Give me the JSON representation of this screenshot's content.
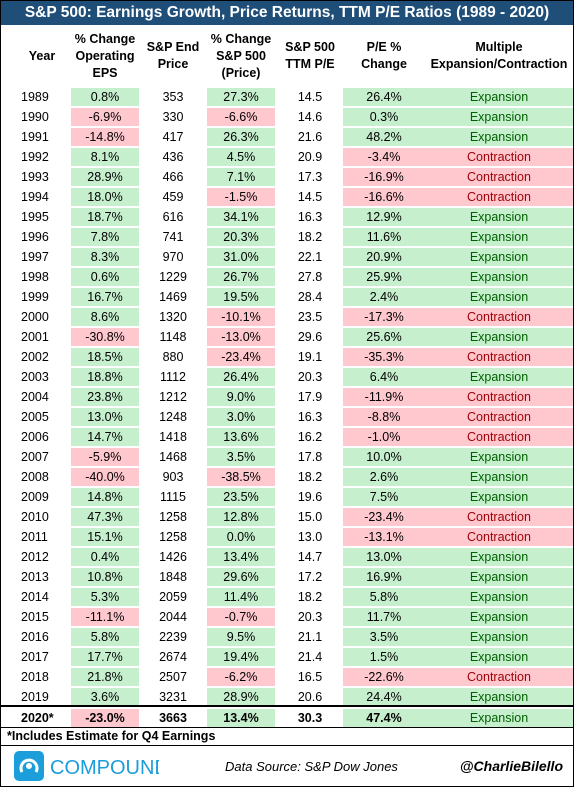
{
  "title": "S&P 500: Earnings Growth, Price Returns, TTM P/E Ratios (1989 - 2020)",
  "headers": [
    "Year",
    "% Change\nOperating\nEPS",
    "S&P End\nPrice",
    "% Change\nS&P 500\n(Price)",
    "S&P 500\nTTM P/E",
    "P/E %\nChange",
    "Multiple\nExpansion/Contraction"
  ],
  "rows": [
    [
      "1989",
      "0.8%",
      "353",
      "27.3%",
      "14.5",
      "26.4%",
      "Expansion"
    ],
    [
      "1990",
      "-6.9%",
      "330",
      "-6.6%",
      "14.6",
      "0.3%",
      "Expansion"
    ],
    [
      "1991",
      "-14.8%",
      "417",
      "26.3%",
      "21.6",
      "48.2%",
      "Expansion"
    ],
    [
      "1992",
      "8.1%",
      "436",
      "4.5%",
      "20.9",
      "-3.4%",
      "Contraction"
    ],
    [
      "1993",
      "28.9%",
      "466",
      "7.1%",
      "17.3",
      "-16.9%",
      "Contraction"
    ],
    [
      "1994",
      "18.0%",
      "459",
      "-1.5%",
      "14.5",
      "-16.6%",
      "Contraction"
    ],
    [
      "1995",
      "18.7%",
      "616",
      "34.1%",
      "16.3",
      "12.9%",
      "Expansion"
    ],
    [
      "1996",
      "7.8%",
      "741",
      "20.3%",
      "18.2",
      "11.6%",
      "Expansion"
    ],
    [
      "1997",
      "8.3%",
      "970",
      "31.0%",
      "22.1",
      "20.9%",
      "Expansion"
    ],
    [
      "1998",
      "0.6%",
      "1229",
      "26.7%",
      "27.8",
      "25.9%",
      "Expansion"
    ],
    [
      "1999",
      "16.7%",
      "1469",
      "19.5%",
      "28.4",
      "2.4%",
      "Expansion"
    ],
    [
      "2000",
      "8.6%",
      "1320",
      "-10.1%",
      "23.5",
      "-17.3%",
      "Contraction"
    ],
    [
      "2001",
      "-30.8%",
      "1148",
      "-13.0%",
      "29.6",
      "25.6%",
      "Expansion"
    ],
    [
      "2002",
      "18.5%",
      "880",
      "-23.4%",
      "19.1",
      "-35.3%",
      "Contraction"
    ],
    [
      "2003",
      "18.8%",
      "1112",
      "26.4%",
      "20.3",
      "6.4%",
      "Expansion"
    ],
    [
      "2004",
      "23.8%",
      "1212",
      "9.0%",
      "17.9",
      "-11.9%",
      "Contraction"
    ],
    [
      "2005",
      "13.0%",
      "1248",
      "3.0%",
      "16.3",
      "-8.8%",
      "Contraction"
    ],
    [
      "2006",
      "14.7%",
      "1418",
      "13.6%",
      "16.2",
      "-1.0%",
      "Contraction"
    ],
    [
      "2007",
      "-5.9%",
      "1468",
      "3.5%",
      "17.8",
      "10.0%",
      "Expansion"
    ],
    [
      "2008",
      "-40.0%",
      "903",
      "-38.5%",
      "18.2",
      "2.6%",
      "Expansion"
    ],
    [
      "2009",
      "14.8%",
      "1115",
      "23.5%",
      "19.6",
      "7.5%",
      "Expansion"
    ],
    [
      "2010",
      "47.3%",
      "1258",
      "12.8%",
      "15.0",
      "-23.4%",
      "Contraction"
    ],
    [
      "2011",
      "15.1%",
      "1258",
      "0.0%",
      "13.0",
      "-13.1%",
      "Contraction"
    ],
    [
      "2012",
      "0.4%",
      "1426",
      "13.4%",
      "14.7",
      "13.0%",
      "Expansion"
    ],
    [
      "2013",
      "10.8%",
      "1848",
      "29.6%",
      "17.2",
      "16.9%",
      "Expansion"
    ],
    [
      "2014",
      "5.3%",
      "2059",
      "11.4%",
      "18.2",
      "5.8%",
      "Expansion"
    ],
    [
      "2015",
      "-11.1%",
      "2044",
      "-0.7%",
      "20.3",
      "11.7%",
      "Expansion"
    ],
    [
      "2016",
      "5.8%",
      "2239",
      "9.5%",
      "21.1",
      "3.5%",
      "Expansion"
    ],
    [
      "2017",
      "17.7%",
      "2674",
      "19.4%",
      "21.4",
      "1.5%",
      "Expansion"
    ],
    [
      "2018",
      "21.8%",
      "2507",
      "-6.2%",
      "16.5",
      "-22.6%",
      "Contraction"
    ],
    [
      "2019",
      "3.6%",
      "3231",
      "28.9%",
      "20.6",
      "24.4%",
      "Expansion"
    ],
    [
      "2020*",
      "-23.0%",
      "3663",
      "13.4%",
      "30.3",
      "47.4%",
      "Expansion"
    ]
  ],
  "footnote": "*Includes Estimate for Q4 Earnings",
  "logo_text": "COMPOUND",
  "source": "Data Source: S&P Dow Jones",
  "handle": "@CharlieBilello",
  "colors": {
    "title_bg": "#1f4e79",
    "positive": "#c6efce",
    "negative": "#ffc7ce",
    "positive_text": "#006100",
    "negative_text": "#9c0006",
    "logo": "#1b9ed9"
  }
}
